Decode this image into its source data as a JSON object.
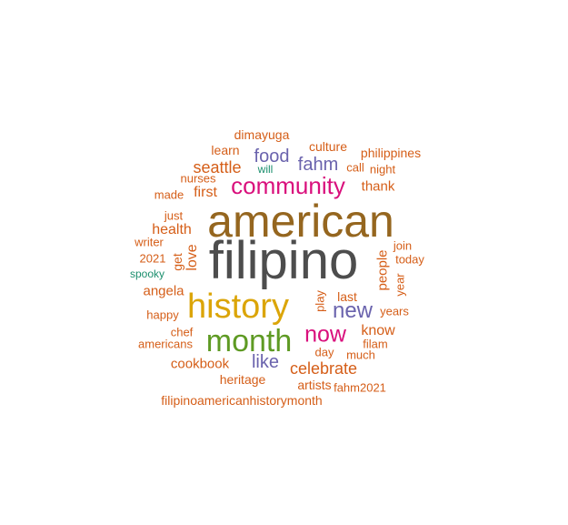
{
  "palette": {
    "gray": "#4d4d4d",
    "brown": "#95661f",
    "gold": "#dba508",
    "green": "#5e9a23",
    "magenta": "#d90f7c",
    "purple": "#6a63ad",
    "orange": "#d55e18",
    "teal": "#1c8f6e"
  },
  "words": [
    {
      "text": "filipino",
      "color": "gray"
    },
    {
      "text": "american",
      "color": "brown"
    },
    {
      "text": "history",
      "color": "gold"
    },
    {
      "text": "month",
      "color": "green"
    },
    {
      "text": "community",
      "color": "magenta"
    },
    {
      "text": "now",
      "color": "magenta"
    },
    {
      "text": "new",
      "color": "purple"
    },
    {
      "text": "food",
      "color": "purple"
    },
    {
      "text": "fahm",
      "color": "purple"
    },
    {
      "text": "like",
      "color": "purple"
    },
    {
      "text": "celebrate",
      "color": "orange"
    },
    {
      "text": "seattle",
      "color": "orange"
    },
    {
      "text": "dimayuga",
      "color": "orange"
    },
    {
      "text": "culture",
      "color": "orange"
    },
    {
      "text": "philippines",
      "color": "orange"
    },
    {
      "text": "learn",
      "color": "orange"
    },
    {
      "text": "will",
      "color": "teal"
    },
    {
      "text": "call",
      "color": "orange"
    },
    {
      "text": "night",
      "color": "orange"
    },
    {
      "text": "nurses",
      "color": "orange"
    },
    {
      "text": "made",
      "color": "orange"
    },
    {
      "text": "first",
      "color": "orange"
    },
    {
      "text": "thank",
      "color": "orange"
    },
    {
      "text": "just",
      "color": "orange"
    },
    {
      "text": "health",
      "color": "orange"
    },
    {
      "text": "writer",
      "color": "orange"
    },
    {
      "text": "love",
      "color": "orange"
    },
    {
      "text": "get",
      "color": "orange"
    },
    {
      "text": "2021",
      "color": "orange"
    },
    {
      "text": "spooky",
      "color": "teal"
    },
    {
      "text": "angela",
      "color": "orange"
    },
    {
      "text": "join",
      "color": "orange"
    },
    {
      "text": "today",
      "color": "orange"
    },
    {
      "text": "people",
      "color": "orange"
    },
    {
      "text": "year",
      "color": "orange"
    },
    {
      "text": "play",
      "color": "orange"
    },
    {
      "text": "last",
      "color": "orange"
    },
    {
      "text": "years",
      "color": "orange"
    },
    {
      "text": "happy",
      "color": "orange"
    },
    {
      "text": "chef",
      "color": "orange"
    },
    {
      "text": "americans",
      "color": "orange"
    },
    {
      "text": "know",
      "color": "orange"
    },
    {
      "text": "filam",
      "color": "orange"
    },
    {
      "text": "day",
      "color": "orange"
    },
    {
      "text": "much",
      "color": "orange"
    },
    {
      "text": "cookbook",
      "color": "orange"
    },
    {
      "text": "heritage",
      "color": "orange"
    },
    {
      "text": "artists",
      "color": "orange"
    },
    {
      "text": "fahm2021",
      "color": "orange"
    },
    {
      "text": "filipinoamericanhistorymonth",
      "color": "orange"
    }
  ]
}
